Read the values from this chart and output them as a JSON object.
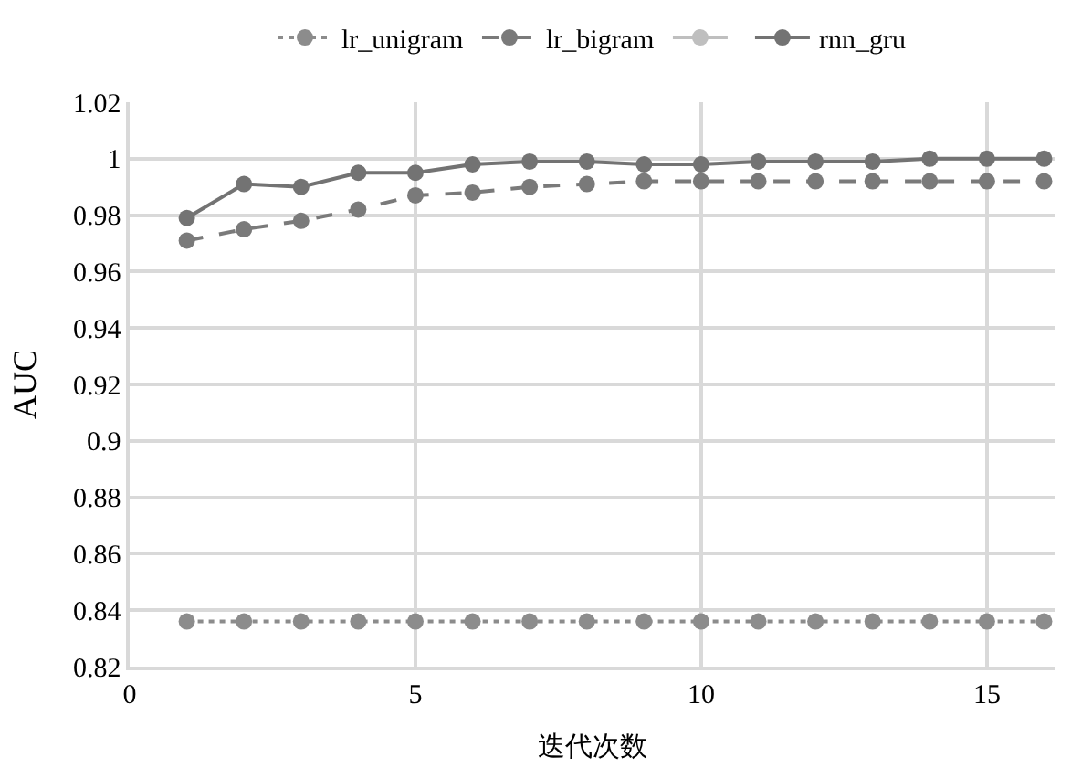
{
  "chart_data": {
    "type": "line",
    "xlabel": "迭代次数",
    "ylabel": "AUC",
    "x": [
      1,
      2,
      3,
      4,
      5,
      6,
      7,
      8,
      9,
      10,
      11,
      12,
      13,
      14,
      15,
      16
    ],
    "series": [
      {
        "name": "lr_unigram",
        "color": "#8c8c8c",
        "line_style": "dotted",
        "values": [
          0.836,
          0.836,
          0.836,
          0.836,
          0.836,
          0.836,
          0.836,
          0.836,
          0.836,
          0.836,
          0.836,
          0.836,
          0.836,
          0.836,
          0.836,
          0.836
        ]
      },
      {
        "name": "lr_bigram",
        "color": "#7a7a7a",
        "line_style": "dashed",
        "values": [
          0.971,
          0.975,
          0.978,
          0.982,
          0.987,
          0.988,
          0.99,
          0.991,
          0.992,
          0.992,
          0.992,
          0.992,
          0.992,
          0.992,
          0.992,
          0.992
        ]
      },
      {
        "color": "#bfbfbf",
        "line_style": "solid",
        "values": [
          null,
          null,
          null,
          null,
          null,
          null,
          null,
          null,
          null,
          null,
          null,
          null,
          null,
          null,
          null,
          null
        ]
      },
      {
        "name": "rnn_gru",
        "color": "#737373",
        "line_style": "solid",
        "values": [
          0.979,
          0.991,
          0.99,
          0.995,
          0.995,
          0.998,
          0.999,
          0.999,
          0.998,
          0.998,
          0.999,
          0.999,
          0.999,
          1.0,
          1.0,
          1.0
        ]
      }
    ],
    "xlim": [
      0,
      16.2
    ],
    "xticks": [
      0,
      5,
      10,
      15
    ],
    "ylim": [
      0.82,
      1.02
    ],
    "yticks": [
      0.82,
      0.84,
      0.86,
      0.88,
      {
        "value": 0.9,
        "label": "0.9"
      },
      0.92,
      0.94,
      0.96,
      0.98,
      {
        "value": 1,
        "label": "1"
      },
      1.02
    ],
    "grid": true,
    "legend": "top",
    "marker": "circle"
  }
}
